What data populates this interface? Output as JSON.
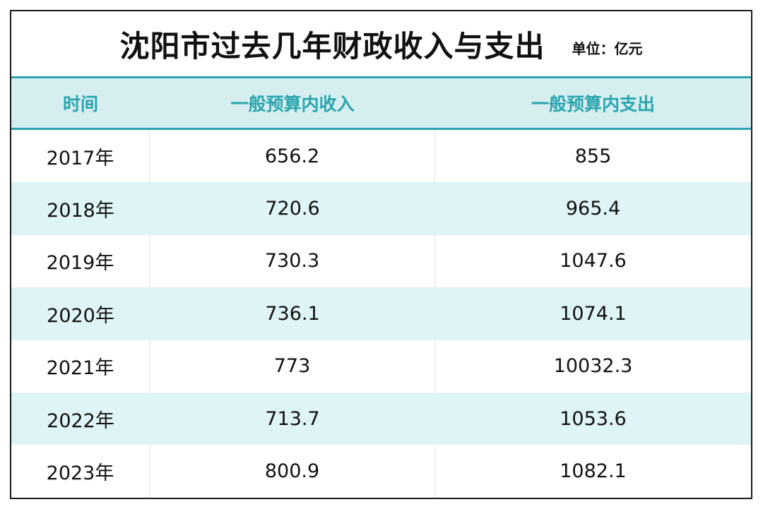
{
  "title": "沈阳市过去几年财政收入与支出",
  "unit": "单位：亿元",
  "headers": [
    "时间",
    "一般预算内收入",
    "一般预算内支出"
  ],
  "rows": [
    {
      "year": "2017年",
      "income": "656.2",
      "expense": "855"
    },
    {
      "year": "2018年",
      "income": "720.6",
      "expense": "965.4"
    },
    {
      "year": "2019年",
      "income": "730.3",
      "expense": "1047.6"
    },
    {
      "year": "2020年",
      "income": "736.1",
      "expense": "1074.1"
    },
    {
      "year": "2021年",
      "income": "773",
      "expense": "10032.3"
    },
    {
      "year": "2022年",
      "income": "713.7",
      "expense": "1053.6"
    },
    {
      "year": "2023年",
      "income": "800.9",
      "expense": "1082.1"
    }
  ],
  "colors": {
    "accent": "#2aa5ae",
    "header_bg": "#d6eef0",
    "alt_row_bg": "#def4f6",
    "text": "#111111"
  }
}
